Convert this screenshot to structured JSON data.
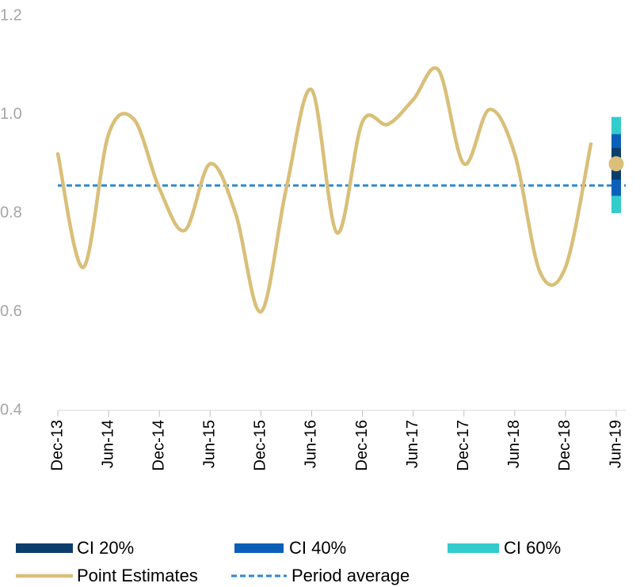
{
  "chart_data": {
    "type": "line",
    "categories": [
      "Dec-13",
      null,
      "Jun-14",
      null,
      "Dec-14",
      null,
      "Jun-15",
      null,
      "Dec-15",
      null,
      "Jun-16",
      null,
      "Dec-16",
      null,
      "Jun-17",
      null,
      "Dec-17",
      null,
      "Jun-18",
      null,
      "Dec-18",
      null,
      "Jun-19"
    ],
    "series": [
      {
        "name": "Point Estimates",
        "color": "#d9bf78",
        "values": [
          0.92,
          0.69,
          0.96,
          0.99,
          0.85,
          0.765,
          0.9,
          0.8,
          0.6,
          0.85,
          1.05,
          0.76,
          0.985,
          0.98,
          1.03,
          1.09,
          0.9,
          1.01,
          0.92,
          0.68,
          0.69,
          0.94,
          null
        ]
      }
    ],
    "average": {
      "name": "Period average",
      "color": "#2f86d0",
      "value": 0.856
    },
    "point_estimate": {
      "value": 0.9,
      "color": "#d9bf78"
    },
    "intervals": [
      {
        "name": "CI 60%",
        "color": "#33cccc",
        "low": 0.8,
        "high": 0.995
      },
      {
        "name": "CI 40%",
        "color": "#0b5fb8",
        "low": 0.835,
        "high": 0.96
      },
      {
        "name": "CI 20%",
        "color": "#0d3d6b",
        "low": 0.868,
        "high": 0.932
      }
    ],
    "ylim": [
      0.4,
      1.2
    ],
    "yticks": [
      0.4,
      0.6,
      0.8,
      {
        "value": 1,
        "label": "1.0"
      },
      1.2
    ]
  }
}
